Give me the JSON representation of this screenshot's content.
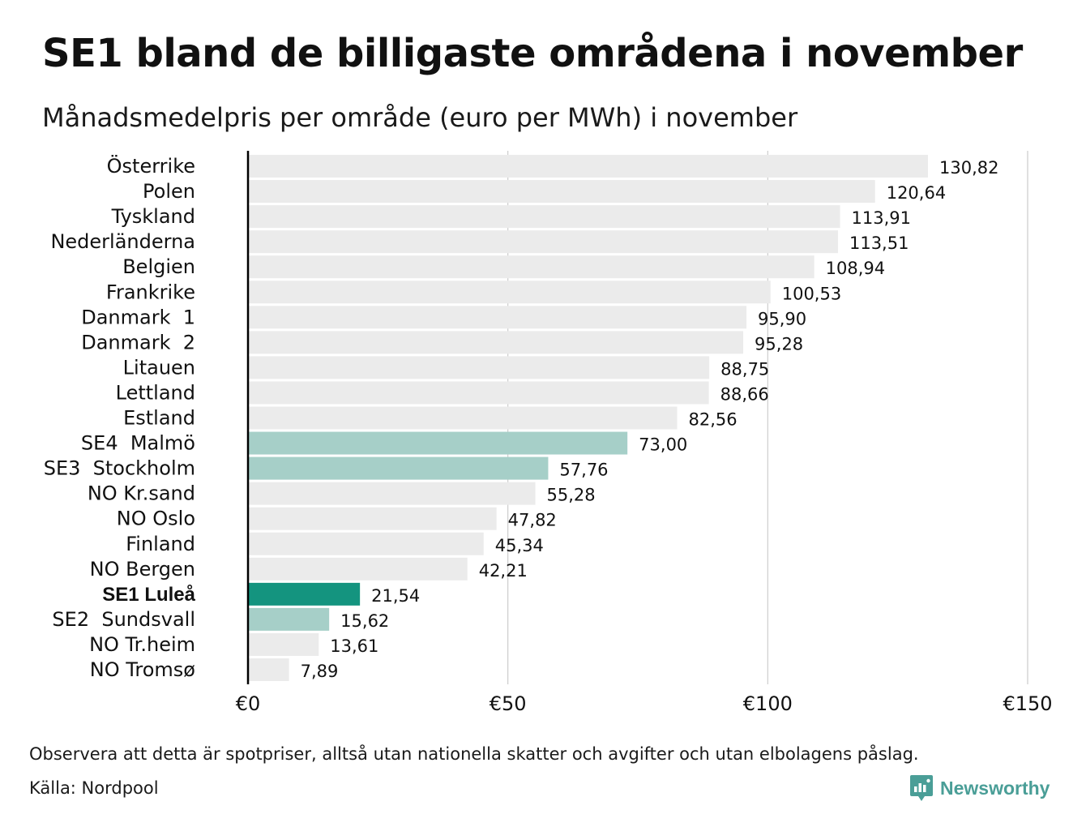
{
  "header": {
    "title": "SE1 bland de billigaste områdena i november",
    "subtitle": "Månadsmedelpris per område (euro per MWh) i november"
  },
  "chart_data": {
    "type": "bar",
    "orientation": "horizontal",
    "title": "SE1 bland de billigaste områdena i november",
    "subtitle": "Månadsmedelpris per område (euro per MWh) i november",
    "xlim": [
      0,
      150
    ],
    "xticks": [
      0,
      50,
      100,
      150
    ],
    "xtick_labels": [
      "€0",
      "€50",
      "€100",
      "€150"
    ],
    "grid": "vertical",
    "categories": [
      "Österrike",
      "Polen",
      "Tyskland",
      "Nederländerna",
      "Belgien",
      "Frankrike",
      "Danmark  1",
      "Danmark  2",
      "Litauen",
      "Lettland",
      "Estland",
      "SE4  Malmö",
      "SE3  Stockholm",
      "NO Kr.sand",
      "NO Oslo",
      "Finland",
      "NO Bergen",
      "SE1 Luleå",
      "SE2  Sundsvall",
      "NO Tr.heim",
      "NO Tromsø"
    ],
    "values": [
      130.82,
      120.64,
      113.91,
      113.51,
      108.94,
      100.53,
      95.9,
      95.28,
      88.75,
      88.66,
      82.56,
      73.0,
      57.76,
      55.28,
      47.82,
      45.34,
      42.21,
      21.54,
      15.62,
      13.61,
      7.89
    ],
    "value_labels": [
      "130,82",
      "120,64",
      "113,91",
      "113,51",
      "108,94",
      "100,53",
      "95,90",
      "95,28",
      "88,75",
      "88,66",
      "82,56",
      "73,00",
      "57,76",
      "55,28",
      "47,82",
      "45,34",
      "42,21",
      "21,54",
      "15,62",
      "13,61",
      "7,89"
    ],
    "bar_colors": [
      "#ebebeb",
      "#ebebeb",
      "#ebebeb",
      "#ebebeb",
      "#ebebeb",
      "#ebebeb",
      "#ebebeb",
      "#ebebeb",
      "#ebebeb",
      "#ebebeb",
      "#ebebeb",
      "#a6cfc8",
      "#a6cfc8",
      "#ebebeb",
      "#ebebeb",
      "#ebebeb",
      "#ebebeb",
      "#14947f",
      "#a6cfc8",
      "#ebebeb",
      "#ebebeb"
    ],
    "highlight_index": 17,
    "colors": {
      "default": "#ebebeb",
      "swedish_area": "#a6cfc8",
      "highlight": "#14947f",
      "gridline": "#cccccc",
      "axis": "#000000"
    }
  },
  "footer": {
    "note": "Observera att detta är spotpriser, alltså utan nationella skatter och avgifter och utan elbolagens påslag.",
    "source": "Källa: Nordpool",
    "brand": "Newsworthy",
    "brand_icon": "bar-chart-speech-bubble-icon"
  }
}
